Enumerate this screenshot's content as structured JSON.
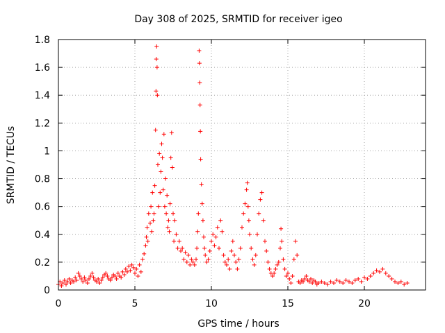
{
  "chart_data": {
    "type": "scatter",
    "title": "Day 308 of 2025, SRMTID for receiver igeo",
    "xlabel": "GPS time / hours",
    "ylabel": "SRMTID / TECUs",
    "xlim": [
      0,
      24
    ],
    "ylim": [
      0,
      1.8
    ],
    "x_ticks": [
      0,
      5,
      10,
      15,
      20
    ],
    "y_ticks": [
      0,
      0.2,
      0.4,
      0.6,
      0.8,
      1,
      1.2,
      1.4,
      1.6,
      1.8
    ],
    "x_tick_labels": [
      "0",
      "5",
      "10",
      "15",
      "20"
    ],
    "y_tick_labels": [
      "0",
      "0.2",
      "0.4",
      "0.6",
      "0.8",
      "1",
      "1.2",
      "1.4",
      "1.6",
      "1.8"
    ],
    "grid": true,
    "marker": "+",
    "series": [
      {
        "name": "SRMTID",
        "color": "#ff0000",
        "points": [
          [
            0.0,
            0.04
          ],
          [
            0.1,
            0.06
          ],
          [
            0.2,
            0.03
          ],
          [
            0.3,
            0.05
          ],
          [
            0.4,
            0.07
          ],
          [
            0.5,
            0.04
          ],
          [
            0.6,
            0.06
          ],
          [
            0.7,
            0.08
          ],
          [
            0.8,
            0.05
          ],
          [
            0.9,
            0.07
          ],
          [
            1.0,
            0.06
          ],
          [
            1.1,
            0.09
          ],
          [
            1.2,
            0.07
          ],
          [
            1.3,
            0.12
          ],
          [
            1.4,
            0.1
          ],
          [
            1.5,
            0.08
          ],
          [
            1.6,
            0.06
          ],
          [
            1.7,
            0.09
          ],
          [
            1.8,
            0.07
          ],
          [
            1.9,
            0.05
          ],
          [
            2.0,
            0.08
          ],
          [
            2.1,
            0.1
          ],
          [
            2.2,
            0.12
          ],
          [
            2.3,
            0.09
          ],
          [
            2.4,
            0.07
          ],
          [
            2.5,
            0.06
          ],
          [
            2.6,
            0.08
          ],
          [
            2.7,
            0.05
          ],
          [
            2.8,
            0.07
          ],
          [
            2.9,
            0.09
          ],
          [
            3.0,
            0.11
          ],
          [
            3.1,
            0.12
          ],
          [
            3.2,
            0.1
          ],
          [
            3.3,
            0.08
          ],
          [
            3.4,
            0.07
          ],
          [
            3.5,
            0.09
          ],
          [
            3.6,
            0.11
          ],
          [
            3.7,
            0.1
          ],
          [
            3.8,
            0.08
          ],
          [
            3.9,
            0.12
          ],
          [
            4.0,
            0.1
          ],
          [
            4.1,
            0.09
          ],
          [
            4.2,
            0.13
          ],
          [
            4.3,
            0.11
          ],
          [
            4.4,
            0.15
          ],
          [
            4.5,
            0.13
          ],
          [
            4.6,
            0.17
          ],
          [
            4.7,
            0.14
          ],
          [
            4.8,
            0.18
          ],
          [
            4.9,
            0.16
          ],
          [
            5.0,
            0.12
          ],
          [
            5.1,
            0.15
          ],
          [
            5.2,
            0.1
          ],
          [
            5.3,
            0.18
          ],
          [
            5.4,
            0.13
          ],
          [
            5.5,
            0.22
          ],
          [
            5.6,
            0.26
          ],
          [
            5.7,
            0.32
          ],
          [
            5.75,
            0.38
          ],
          [
            5.8,
            0.45
          ],
          [
            5.85,
            0.35
          ],
          [
            5.9,
            0.55
          ],
          [
            6.0,
            0.48
          ],
          [
            6.05,
            0.6
          ],
          [
            6.1,
            0.42
          ],
          [
            6.15,
            0.7
          ],
          [
            6.2,
            0.5
          ],
          [
            6.25,
            0.55
          ],
          [
            6.3,
            0.75
          ],
          [
            6.35,
            1.15
          ],
          [
            6.38,
            1.43
          ],
          [
            6.4,
            1.66
          ],
          [
            6.42,
            1.75
          ],
          [
            6.45,
            1.6
          ],
          [
            6.47,
            1.4
          ],
          [
            6.5,
            0.9
          ],
          [
            6.55,
            0.6
          ],
          [
            6.6,
            0.98
          ],
          [
            6.65,
            0.7
          ],
          [
            6.7,
            0.85
          ],
          [
            6.75,
            1.05
          ],
          [
            6.8,
            0.95
          ],
          [
            6.85,
            0.72
          ],
          [
            6.9,
            1.12
          ],
          [
            6.95,
            0.6
          ],
          [
            7.0,
            0.8
          ],
          [
            7.05,
            0.55
          ],
          [
            7.1,
            0.68
          ],
          [
            7.15,
            0.45
          ],
          [
            7.2,
            0.5
          ],
          [
            7.25,
            0.42
          ],
          [
            7.3,
            0.62
          ],
          [
            7.35,
            0.95
          ],
          [
            7.4,
            1.13
          ],
          [
            7.45,
            0.88
          ],
          [
            7.5,
            0.55
          ],
          [
            7.55,
            0.35
          ],
          [
            7.6,
            0.5
          ],
          [
            7.7,
            0.4
          ],
          [
            7.8,
            0.3
          ],
          [
            7.9,
            0.35
          ],
          [
            8.0,
            0.28
          ],
          [
            8.1,
            0.3
          ],
          [
            8.2,
            0.22
          ],
          [
            8.3,
            0.27
          ],
          [
            8.4,
            0.2
          ],
          [
            8.5,
            0.25
          ],
          [
            8.6,
            0.18
          ],
          [
            8.7,
            0.22
          ],
          [
            8.8,
            0.2
          ],
          [
            8.9,
            0.18
          ],
          [
            9.0,
            0.22
          ],
          [
            9.05,
            0.3
          ],
          [
            9.1,
            0.42
          ],
          [
            9.15,
            0.55
          ],
          [
            9.2,
            1.72
          ],
          [
            9.22,
            1.63
          ],
          [
            9.24,
            1.49
          ],
          [
            9.26,
            1.33
          ],
          [
            9.28,
            1.14
          ],
          [
            9.3,
            0.94
          ],
          [
            9.35,
            0.76
          ],
          [
            9.4,
            0.62
          ],
          [
            9.45,
            0.5
          ],
          [
            9.5,
            0.38
          ],
          [
            9.55,
            0.3
          ],
          [
            9.6,
            0.25
          ],
          [
            9.7,
            0.2
          ],
          [
            9.8,
            0.22
          ],
          [
            9.9,
            0.28
          ],
          [
            10.0,
            0.35
          ],
          [
            10.1,
            0.4
          ],
          [
            10.2,
            0.32
          ],
          [
            10.3,
            0.38
          ],
          [
            10.4,
            0.45
          ],
          [
            10.5,
            0.3
          ],
          [
            10.6,
            0.5
          ],
          [
            10.7,
            0.42
          ],
          [
            10.8,
            0.25
          ],
          [
            10.9,
            0.2
          ],
          [
            11.0,
            0.18
          ],
          [
            11.1,
            0.22
          ],
          [
            11.2,
            0.15
          ],
          [
            11.3,
            0.28
          ],
          [
            11.4,
            0.35
          ],
          [
            11.5,
            0.25
          ],
          [
            11.6,
            0.2
          ],
          [
            11.7,
            0.15
          ],
          [
            11.8,
            0.22
          ],
          [
            11.9,
            0.3
          ],
          [
            12.0,
            0.45
          ],
          [
            12.1,
            0.55
          ],
          [
            12.2,
            0.62
          ],
          [
            12.3,
            0.72
          ],
          [
            12.35,
            0.77
          ],
          [
            12.4,
            0.6
          ],
          [
            12.45,
            0.5
          ],
          [
            12.5,
            0.4
          ],
          [
            12.6,
            0.3
          ],
          [
            12.7,
            0.22
          ],
          [
            12.8,
            0.18
          ],
          [
            12.9,
            0.25
          ],
          [
            13.0,
            0.4
          ],
          [
            13.1,
            0.55
          ],
          [
            13.2,
            0.65
          ],
          [
            13.3,
            0.7
          ],
          [
            13.4,
            0.5
          ],
          [
            13.5,
            0.35
          ],
          [
            13.6,
            0.28
          ],
          [
            13.7,
            0.2
          ],
          [
            13.8,
            0.15
          ],
          [
            13.9,
            0.12
          ],
          [
            14.0,
            0.1
          ],
          [
            14.1,
            0.12
          ],
          [
            14.2,
            0.15
          ],
          [
            14.3,
            0.18
          ],
          [
            14.4,
            0.2
          ],
          [
            14.5,
            0.3
          ],
          [
            14.55,
            0.44
          ],
          [
            14.6,
            0.35
          ],
          [
            14.7,
            0.22
          ],
          [
            14.8,
            0.15
          ],
          [
            14.9,
            0.1
          ],
          [
            15.0,
            0.12
          ],
          [
            15.1,
            0.08
          ],
          [
            15.2,
            0.05
          ],
          [
            15.3,
            0.1
          ],
          [
            15.4,
            0.22
          ],
          [
            15.5,
            0.35
          ],
          [
            15.6,
            0.25
          ],
          [
            15.7,
            0.06
          ],
          [
            15.8,
            0.05
          ],
          [
            15.9,
            0.07
          ],
          [
            16.0,
            0.06
          ],
          [
            16.1,
            0.08
          ],
          [
            16.2,
            0.1
          ],
          [
            16.3,
            0.07
          ],
          [
            16.4,
            0.06
          ],
          [
            16.5,
            0.08
          ],
          [
            16.6,
            0.05
          ],
          [
            16.7,
            0.07
          ],
          [
            16.8,
            0.06
          ],
          [
            16.9,
            0.04
          ],
          [
            17.0,
            0.05
          ],
          [
            17.2,
            0.06
          ],
          [
            17.4,
            0.05
          ],
          [
            17.6,
            0.04
          ],
          [
            17.8,
            0.06
          ],
          [
            18.0,
            0.05
          ],
          [
            18.2,
            0.07
          ],
          [
            18.4,
            0.06
          ],
          [
            18.6,
            0.05
          ],
          [
            18.8,
            0.07
          ],
          [
            19.0,
            0.06
          ],
          [
            19.2,
            0.05
          ],
          [
            19.4,
            0.07
          ],
          [
            19.6,
            0.08
          ],
          [
            19.8,
            0.06
          ],
          [
            20.0,
            0.09
          ],
          [
            20.2,
            0.08
          ],
          [
            20.4,
            0.1
          ],
          [
            20.6,
            0.12
          ],
          [
            20.8,
            0.14
          ],
          [
            21.0,
            0.13
          ],
          [
            21.2,
            0.15
          ],
          [
            21.4,
            0.12
          ],
          [
            21.6,
            0.1
          ],
          [
            21.8,
            0.08
          ],
          [
            22.0,
            0.06
          ],
          [
            22.2,
            0.05
          ],
          [
            22.4,
            0.06
          ],
          [
            22.6,
            0.04
          ],
          [
            22.8,
            0.05
          ]
        ]
      }
    ]
  }
}
